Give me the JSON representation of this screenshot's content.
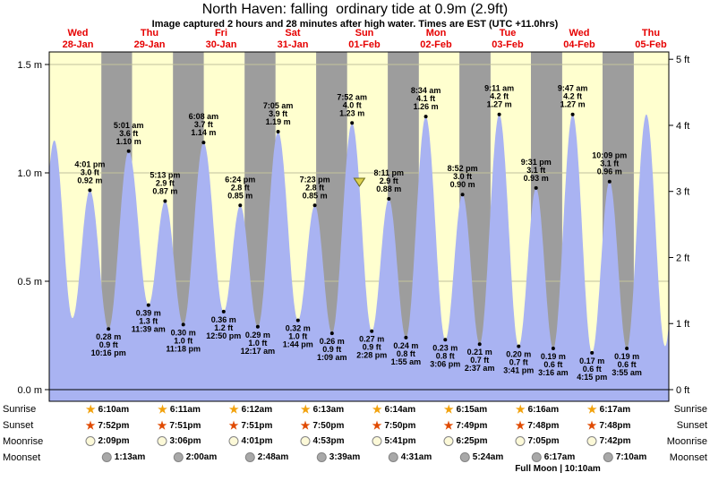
{
  "title": "North Haven: falling  ordinary tide at 0.9m (2.9ft)",
  "subtitle": "Image captured 2 hours and 28 minutes after high water. Times are EST (UTC +11.0hrs)",
  "colors": {
    "day_bg": "#ffffcf",
    "night_bg": "#9d9d9d",
    "tide_fill": "#a9b3f2",
    "day_label_red": "#e60000",
    "grid": "#c2c29c",
    "axis": "#000000",
    "marker_fill": "#ddd04e",
    "marker_stroke": "#6f6f1a",
    "sunrise_icon": "#f2a20d",
    "sunset_icon": "#e04a00",
    "moonrise_icon": "#fcf9d8",
    "moonset_icon": "#a8a8a8"
  },
  "days": [
    {
      "weekday": "Wed",
      "date": "28-Jan"
    },
    {
      "weekday": "Thu",
      "date": "29-Jan"
    },
    {
      "weekday": "Fri",
      "date": "30-Jan"
    },
    {
      "weekday": "Sat",
      "date": "31-Jan"
    },
    {
      "weekday": "Sun",
      "date": "01-Feb"
    },
    {
      "weekday": "Mon",
      "date": "02-Feb"
    },
    {
      "weekday": "Tue",
      "date": "03-Feb"
    },
    {
      "weekday": "Wed",
      "date": "04-Feb"
    },
    {
      "weekday": "Thu",
      "date": "05-Feb"
    }
  ],
  "axes": {
    "left": [
      {
        "label": "0.0 m",
        "m": 0
      },
      {
        "label": "0.5 m",
        "m": 0.5
      },
      {
        "label": "1.0 m",
        "m": 1
      },
      {
        "label": "1.5 m",
        "m": 1.5
      }
    ],
    "right": [
      {
        "label": "0 ft",
        "ft": 0
      },
      {
        "label": "1 ft",
        "ft": 1
      },
      {
        "label": "2 ft",
        "ft": 2
      },
      {
        "label": "3 ft",
        "ft": 3
      },
      {
        "label": "4 ft",
        "ft": 4
      },
      {
        "label": "5 ft",
        "ft": 5
      }
    ]
  },
  "chart_data": {
    "type": "area",
    "title": "Tide height curve for North Haven, Wed 28-Jan to Thu 05-Feb",
    "ylabel_left": "metres",
    "ylabel_right": "feet",
    "ylim_m": [
      0,
      1.5
    ],
    "ylim_ft": [
      0,
      5
    ],
    "x_epoch": "hours since Wed 28-Jan 00:00",
    "x_range_hours": [
      2.4,
      210
    ],
    "marker": {
      "t": 106.33,
      "m": "0.93",
      "description": "current tide position, 2h28m after high water, falling"
    },
    "events": [
      {
        "type": "high",
        "t": 4.08,
        "m": "1.15",
        "labeled": false
      },
      {
        "type": "low",
        "t": 10.17,
        "m": "0.33",
        "labeled": false
      },
      {
        "type": "high",
        "t": 16.02,
        "time": "4:01 pm",
        "ft": "3.0",
        "m": "0.92",
        "labeled": true
      },
      {
        "type": "low",
        "t": 22.27,
        "time": "10:16 pm",
        "ft": "0.9",
        "m": "0.28",
        "labeled": true
      },
      {
        "type": "high",
        "t": 29.02,
        "time": "5:01 am",
        "ft": "3.6",
        "m": "1.10",
        "labeled": true
      },
      {
        "type": "low",
        "t": 35.65,
        "time": "11:39 am",
        "ft": "1.3",
        "m": "0.39",
        "labeled": true
      },
      {
        "type": "high",
        "t": 41.22,
        "time": "5:13 pm",
        "ft": "2.9",
        "m": "0.87",
        "labeled": true
      },
      {
        "type": "low",
        "t": 47.3,
        "time": "11:18 pm",
        "ft": "1.0",
        "m": "0.30",
        "labeled": true
      },
      {
        "type": "high",
        "t": 54.13,
        "time": "6:08 am",
        "ft": "3.7",
        "m": "1.14",
        "labeled": true
      },
      {
        "type": "low",
        "t": 60.83,
        "time": "12:50 pm",
        "ft": "1.2",
        "m": "0.36",
        "labeled": true
      },
      {
        "type": "high",
        "t": 66.4,
        "time": "6:24 pm",
        "ft": "2.8",
        "m": "0.85",
        "labeled": true
      },
      {
        "type": "low",
        "t": 72.28,
        "time": "12:17 am",
        "ft": "1.0",
        "m": "0.29",
        "labeled": true
      },
      {
        "type": "high",
        "t": 79.08,
        "time": "7:05 am",
        "ft": "3.9",
        "m": "1.19",
        "labeled": true
      },
      {
        "type": "low",
        "t": 85.73,
        "time": "1:44 pm",
        "ft": "1.0",
        "m": "0.32",
        "labeled": true
      },
      {
        "type": "high",
        "t": 91.38,
        "time": "7:23 pm",
        "ft": "2.8",
        "m": "0.85",
        "labeled": true
      },
      {
        "type": "low",
        "t": 97.15,
        "time": "1:09 am",
        "ft": "0.9",
        "m": "0.26",
        "labeled": true
      },
      {
        "type": "high",
        "t": 103.87,
        "time": "7:52 am",
        "ft": "4.0",
        "m": "1.23",
        "labeled": true
      },
      {
        "type": "low",
        "t": 110.47,
        "time": "2:28 pm",
        "ft": "0.9",
        "m": "0.27",
        "labeled": true
      },
      {
        "type": "high",
        "t": 116.18,
        "time": "8:11 pm",
        "ft": "2.9",
        "m": "0.88",
        "labeled": true
      },
      {
        "type": "low",
        "t": 121.92,
        "time": "1:55 am",
        "ft": "0.8",
        "m": "0.24",
        "labeled": true
      },
      {
        "type": "high",
        "t": 128.57,
        "time": "8:34 am",
        "ft": "4.1",
        "m": "1.26",
        "labeled": true
      },
      {
        "type": "low",
        "t": 135.1,
        "time": "3:06 pm",
        "ft": "0.8",
        "m": "0.23",
        "labeled": true
      },
      {
        "type": "high",
        "t": 140.87,
        "time": "8:52 pm",
        "ft": "3.0",
        "m": "0.90",
        "labeled": true
      },
      {
        "type": "low",
        "t": 146.62,
        "time": "2:37 am",
        "ft": "0.7",
        "m": "0.21",
        "labeled": true
      },
      {
        "type": "high",
        "t": 153.18,
        "time": "9:11 am",
        "ft": "4.2",
        "m": "1.27",
        "labeled": true
      },
      {
        "type": "low",
        "t": 159.68,
        "time": "3:41 pm",
        "ft": "0.7",
        "m": "0.20",
        "labeled": true
      },
      {
        "type": "high",
        "t": 165.52,
        "time": "9:31 pm",
        "ft": "3.1",
        "m": "0.93",
        "labeled": true
      },
      {
        "type": "low",
        "t": 171.27,
        "time": "3:16 am",
        "ft": "0.6",
        "m": "0.19",
        "labeled": true
      },
      {
        "type": "high",
        "t": 177.78,
        "time": "9:47 am",
        "ft": "4.2",
        "m": "1.27",
        "labeled": true
      },
      {
        "type": "low",
        "t": 184.25,
        "time": "4:15 pm",
        "ft": "0.6",
        "m": "0.17",
        "labeled": true
      },
      {
        "type": "high",
        "t": 190.15,
        "time": "10:09 pm",
        "ft": "3.1",
        "m": "0.96",
        "labeled": true
      },
      {
        "type": "low",
        "t": 195.92,
        "time": "3:55 am",
        "ft": "0.6",
        "m": "0.19",
        "labeled": true
      },
      {
        "type": "high",
        "t": 202.48,
        "m": "1.27",
        "labeled": false
      },
      {
        "type": "low",
        "t": 208.75,
        "m": "0.20",
        "labeled": false
      }
    ]
  },
  "sun_moon": {
    "rows": [
      {
        "name": "Sunrise",
        "icon_type": "star",
        "times": [
          "6:10am",
          "6:11am",
          "6:12am",
          "6:13am",
          "6:14am",
          "6:15am",
          "6:16am",
          "6:17am"
        ]
      },
      {
        "name": "Sunset",
        "icon_type": "star",
        "times": [
          "7:52pm",
          "7:51pm",
          "7:51pm",
          "7:50pm",
          "7:50pm",
          "7:49pm",
          "7:48pm",
          "7:48pm"
        ]
      },
      {
        "name": "Moonrise",
        "icon_type": "circle",
        "times": [
          "2:09pm",
          "3:06pm",
          "4:01pm",
          "4:53pm",
          "5:41pm",
          "6:25pm",
          "7:05pm",
          "7:42pm"
        ]
      },
      {
        "name": "Moonset",
        "icon_type": "circle",
        "times": [
          "1:13am",
          "2:00am",
          "2:48am",
          "3:39am",
          "4:31am",
          "5:24am",
          "6:17am",
          "7:10am"
        ]
      }
    ],
    "footnote": "Full Moon | 10:10am"
  }
}
